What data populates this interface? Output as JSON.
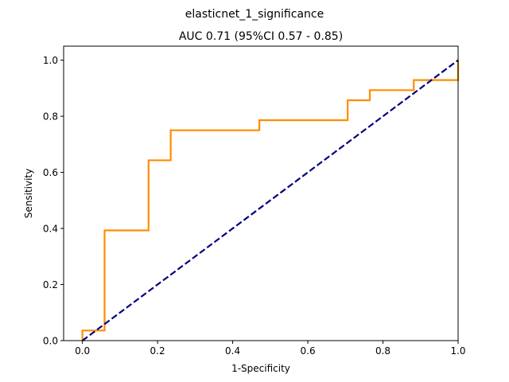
{
  "suptitle": "elasticnet_1_significance",
  "chart_data": {
    "type": "line",
    "title": "AUC 0.71 (95%CI 0.57 - 0.85)",
    "xlabel": "1-Specificity",
    "ylabel": "Sensitivity",
    "xlim": [
      -0.05,
      1.0
    ],
    "ylim": [
      0.0,
      1.05
    ],
    "xticks": [
      "0.0",
      "0.2",
      "0.4",
      "0.6",
      "0.8",
      "1.0"
    ],
    "yticks": [
      "0.0",
      "0.2",
      "0.4",
      "0.6",
      "0.8",
      "1.0"
    ],
    "grid": false,
    "legend": false,
    "series": [
      {
        "color": "#ff8c00",
        "style": "solid",
        "x": [
          0.0,
          0.0,
          0.059,
          0.059,
          0.176,
          0.176,
          0.235,
          0.235,
          0.471,
          0.471,
          0.706,
          0.706,
          0.765,
          0.765,
          0.882,
          0.882,
          1.0,
          1.0
        ],
        "y": [
          0.0,
          0.036,
          0.036,
          0.393,
          0.393,
          0.643,
          0.643,
          0.75,
          0.75,
          0.786,
          0.786,
          0.857,
          0.857,
          0.893,
          0.893,
          0.929,
          0.929,
          1.0
        ]
      },
      {
        "color": "#000080",
        "style": "dashed",
        "x": [
          0.0,
          1.0
        ],
        "y": [
          0.0,
          1.0
        ]
      }
    ]
  }
}
